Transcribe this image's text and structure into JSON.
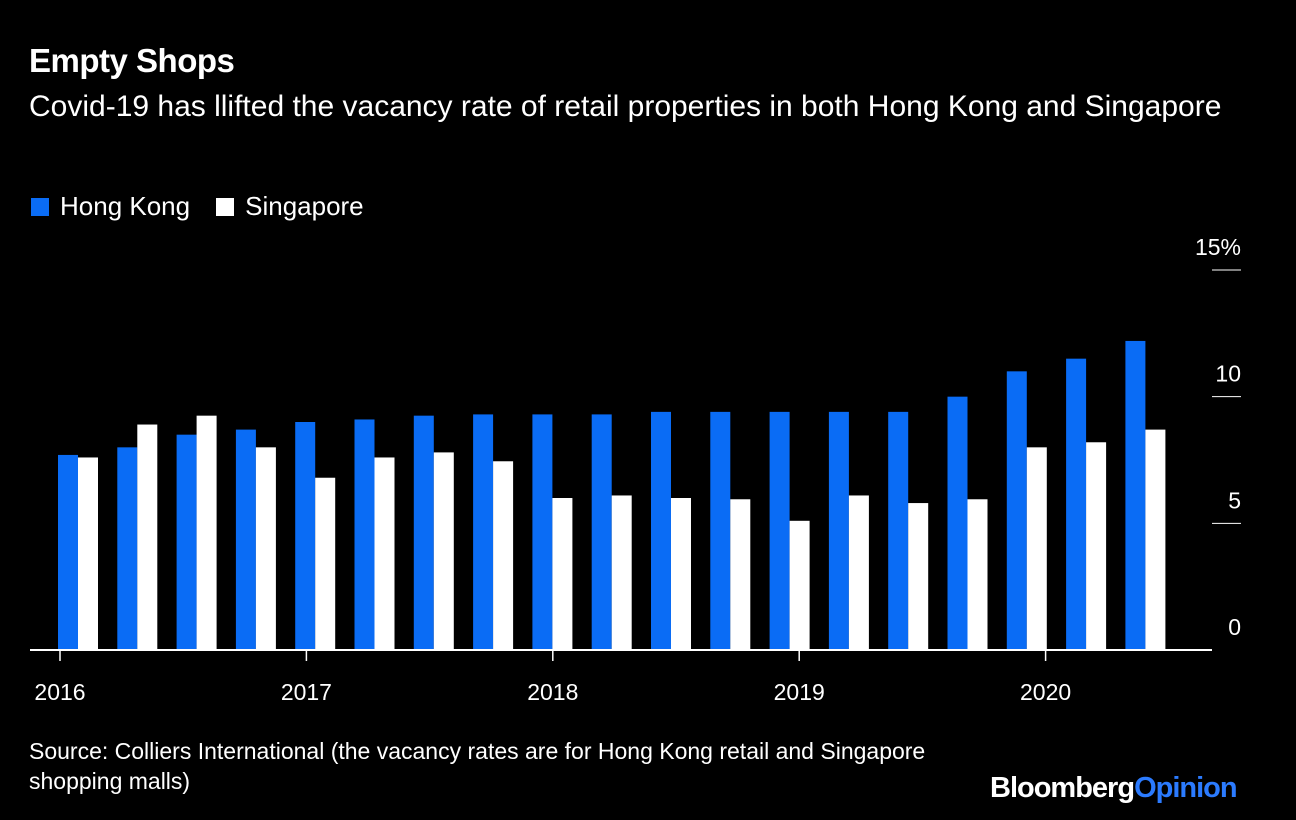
{
  "title": "Empty Shops",
  "subtitle": "Covid-19 has llifted the vacancy rate of retail properties in both Hong Kong and Singapore",
  "source": "Source: Colliers International (the vacancy rates are for Hong Kong retail and Singapore shopping malls)",
  "brand": {
    "part1": "Bloomberg",
    "part2": "Opinion"
  },
  "colors": {
    "hong_kong": "#0a6cf5",
    "singapore": "#ffffff",
    "background": "#000000",
    "brand_accent": "#2b7bff"
  },
  "chart_data": {
    "type": "bar",
    "title": "Empty Shops",
    "xlabel": "",
    "ylabel": "",
    "ylim": [
      0,
      15
    ],
    "yticks": [
      0,
      5,
      10,
      15
    ],
    "ytick_labels": [
      "0",
      "5",
      "10",
      "15%"
    ],
    "x_year_labels": [
      "2016",
      "2017",
      "2018",
      "2019",
      "2020"
    ],
    "legend_position": "top-left",
    "categories": [
      "Q1 2016",
      "Q2 2016",
      "Q3 2016",
      "Q4 2016",
      "Q1 2017",
      "Q2 2017",
      "Q3 2017",
      "Q4 2017",
      "Q1 2018",
      "Q2 2018",
      "Q3 2018",
      "Q4 2018",
      "Q1 2019",
      "Q2 2019",
      "Q3 2019",
      "Q4 2019",
      "Q1 2020",
      "Q2 2020",
      "Q3 2020"
    ],
    "series": [
      {
        "name": "Hong Kong",
        "color": "#0a6cf5",
        "values": [
          7.7,
          8.0,
          8.5,
          8.7,
          9.0,
          9.1,
          9.25,
          9.3,
          9.3,
          9.3,
          9.4,
          9.4,
          9.4,
          9.4,
          9.4,
          10.0,
          11.0,
          11.5,
          12.2
        ]
      },
      {
        "name": "Singapore",
        "color": "#ffffff",
        "values": [
          7.6,
          8.9,
          9.25,
          8.0,
          6.8,
          7.6,
          7.8,
          7.45,
          6.0,
          6.1,
          6.0,
          5.95,
          5.1,
          6.1,
          5.8,
          5.95,
          8.0,
          8.2,
          8.7
        ]
      }
    ]
  }
}
